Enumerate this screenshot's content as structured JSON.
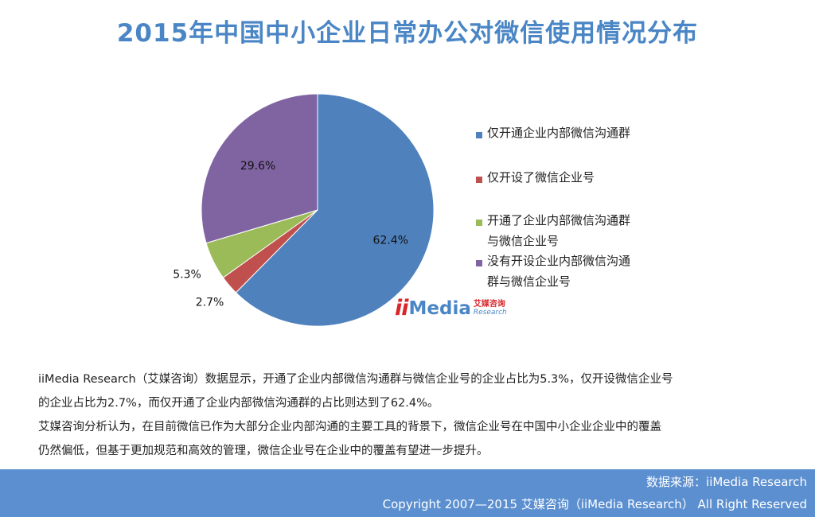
{
  "title": "2015年中国中小企业日常办公对微信使用情况分布",
  "chart_data": {
    "type": "pie",
    "start_angle_deg": 0,
    "slices": [
      {
        "label": "仅开通企业内部微信沟通群",
        "value": 62.4,
        "display": "62.4%",
        "color": "#4f81bd"
      },
      {
        "label": "仅开设了微信企业号",
        "value": 2.7,
        "display": "2.7%",
        "color": "#c0504d"
      },
      {
        "label": "开通了企业内部微信沟通群与微信企业号",
        "value": 5.3,
        "display": "5.3%",
        "color": "#9bbb59"
      },
      {
        "label": "没有开设企业内部微信沟通群与微信企业号",
        "value": 29.6,
        "display": "29.6%",
        "color": "#8064a2"
      }
    ],
    "legend_position": "right"
  },
  "legend": [
    {
      "line1": "仅开通企业内部微信沟通群",
      "line2": "",
      "color": "#4f81bd"
    },
    {
      "line1": "仅开设了微信企业号",
      "line2": "",
      "color": "#c0504d"
    },
    {
      "line1": "开通了企业内部微信沟通群",
      "line2": "与微信企业号",
      "color": "#9bbb59"
    },
    {
      "line1": "没有开设企业内部微信沟通",
      "line2": "群与微信企业号",
      "color": "#8064a2"
    }
  ],
  "logo": {
    "ii": "ii",
    "media": "Media",
    "cn": "艾媒咨询",
    "en": "Research"
  },
  "description": {
    "para1_line1": "iiMedia Research（艾媒咨询）数据显示，开通了企业内部微信沟通群与微信企业号的企业占比为5.3%，仅开设微信企业号",
    "para1_line2": "的企业占比为2.7%，而仅开通了企业内部微信沟通群的占比则达到了62.4%。",
    "para2_line1": "艾媒咨询分析认为，在目前微信已作为大部分企业内部沟通的主要工具的背景下，微信企业号在中国中小企业企业中的覆盖",
    "para2_line2": "仍然偏低，但基于更加规范和高效的管理，微信企业号在企业中的覆盖有望进一步提升。"
  },
  "footer": {
    "source": "数据来源：iiMedia Research",
    "copyright": "Copyright 2007—2015 艾媒咨询（iiMedia Research） All Right Reserved"
  },
  "colors": {
    "title": "#4a86c5",
    "footer_bg": "#5b8fd0",
    "brand_red": "#d9262b"
  }
}
